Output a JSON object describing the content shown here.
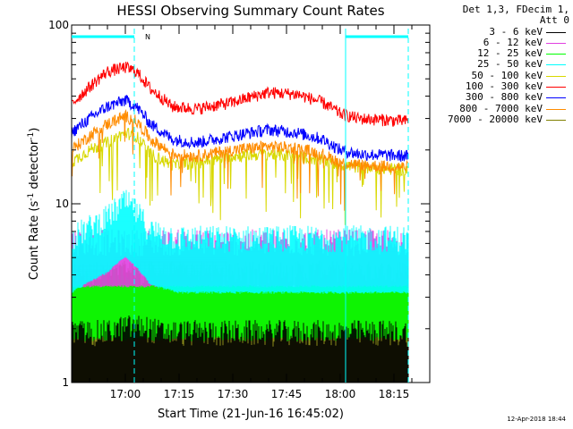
{
  "chart_data": {
    "type": "line",
    "title": "HESSI Observing Summary Count Rates",
    "xlabel": "Start Time (21-Jun-16 16:45:02)",
    "ylabel_main": "Count Rate (s",
    "ylabel_sup1": "-1",
    "ylabel_mid": " detector",
    "ylabel_sup2": "-1",
    "ylabel_end": ")",
    "yscale": "log",
    "ylim": [
      1,
      100
    ],
    "xlim_minutes": [
      0,
      100
    ],
    "y_ticks": [
      "100",
      "10",
      "1"
    ],
    "x_ticks": [
      "17:00",
      "17:15",
      "17:30",
      "17:45",
      "18:00",
      "18:15"
    ],
    "x_tick_minutes": [
      15,
      30,
      45,
      60,
      75,
      90
    ],
    "night_intervals_minutes": [
      [
        0,
        17.5
      ],
      [
        76.5,
        94
      ]
    ],
    "night_marker_label": "N",
    "series": [
      {
        "name": "3 - 6 keV",
        "color": "#000000",
        "low": 1.0,
        "high": 2.0,
        "t": [
          0,
          10,
          15,
          20,
          25,
          30,
          40,
          50,
          60,
          70,
          80,
          94
        ],
        "v": [
          1.4,
          1.4,
          1.5,
          1.5,
          1.4,
          1.4,
          1.4,
          1.4,
          1.4,
          1.4,
          1.4,
          1.4
        ]
      },
      {
        "name": "6 - 12 keV",
        "color": "#e040e0",
        "low": 4.0,
        "high": 6.0,
        "t": [
          0,
          94
        ],
        "v": [
          5,
          5
        ]
      },
      {
        "name": "12 - 25 keV",
        "color": "#00ff00",
        "low": 2.0,
        "high": 4.0,
        "t": [
          0,
          94
        ],
        "v": [
          3,
          3
        ]
      },
      {
        "name": "25 - 50 keV",
        "color": "#00ffff",
        "low": 3.5,
        "high": 6.0,
        "t": [
          0,
          10,
          15,
          18,
          22,
          30,
          94
        ],
        "v": [
          5,
          6.5,
          8,
          7,
          5.5,
          5,
          5
        ]
      },
      {
        "name": "50 - 100 keV",
        "color": "#d8d800",
        "low": 0,
        "high": 0,
        "t": [
          0,
          5,
          10,
          15,
          18,
          22,
          28,
          35,
          45,
          55,
          63,
          70,
          75,
          80,
          94
        ],
        "v": [
          17,
          20,
          22,
          25,
          24,
          19,
          16.5,
          17,
          18.5,
          19,
          18.5,
          17.5,
          16.5,
          16,
          15.5
        ]
      },
      {
        "name": "100 - 300 keV",
        "color": "#ff0000",
        "low": 0,
        "high": 0,
        "t": [
          0,
          5,
          10,
          15,
          18,
          22,
          28,
          35,
          45,
          55,
          63,
          70,
          75,
          80,
          94
        ],
        "v": [
          36,
          45,
          55,
          58,
          55,
          44,
          35,
          34,
          37,
          42,
          41,
          37,
          32,
          30,
          29
        ]
      },
      {
        "name": "300 - 800 keV",
        "color": "#0000ff",
        "low": 0,
        "high": 0,
        "t": [
          0,
          5,
          10,
          15,
          18,
          22,
          28,
          35,
          45,
          55,
          63,
          70,
          75,
          80,
          94
        ],
        "v": [
          25,
          30,
          35,
          38,
          35,
          28,
          23,
          22,
          24,
          26,
          25,
          23,
          20,
          19,
          18.5
        ]
      },
      {
        "name": "800 - 7000 keV",
        "color": "#ff8c00",
        "low": 0,
        "high": 0,
        "t": [
          0,
          5,
          10,
          15,
          18,
          22,
          28,
          35,
          45,
          55,
          63,
          70,
          75,
          80,
          94
        ],
        "v": [
          20,
          24,
          28,
          31,
          29,
          23,
          19,
          18.5,
          20,
          21,
          20.5,
          19,
          17,
          16.5,
          16
        ]
      },
      {
        "name": "7000 - 20000 keV",
        "color": "#808000",
        "low": 1.0,
        "high": 4.0,
        "t": [
          0,
          94
        ],
        "v": [
          2.5,
          2.5
        ]
      }
    ]
  },
  "legend": {
    "header_line1": "Det 1,3, FDecim 1,",
    "header_line2": "Att 0"
  },
  "timestamp": "12-Apr-2018 18:44"
}
